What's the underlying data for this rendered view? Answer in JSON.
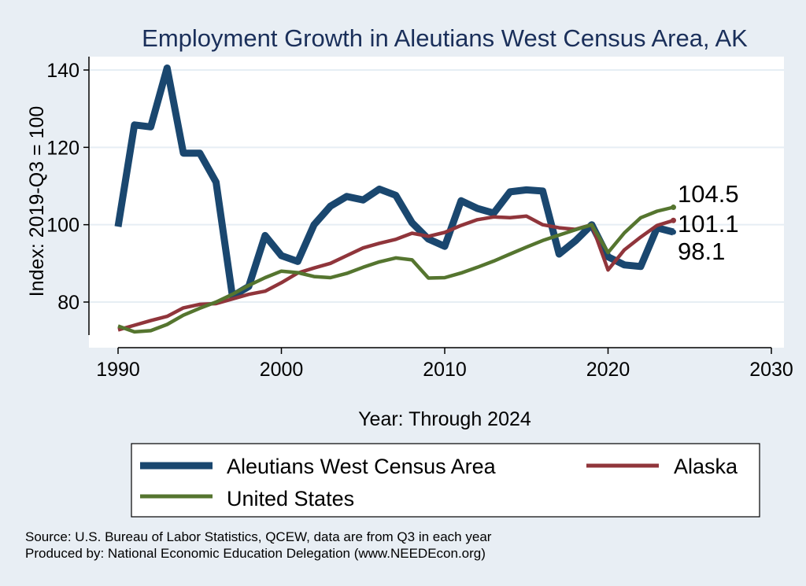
{
  "chart_data": {
    "type": "line",
    "title": "Employment Growth in Aleutians West Census Area, AK",
    "xlabel": "Year: Through 2024",
    "ylabel": "Index: 2019-Q3 = 100",
    "xlim": [
      1990,
      2030
    ],
    "ylim": [
      70,
      142
    ],
    "xticks": [
      1990,
      2000,
      2010,
      2020,
      2030
    ],
    "yticks": [
      80,
      100,
      120,
      140
    ],
    "grid": true,
    "legend_position": "bottom",
    "x": [
      1990,
      1991,
      1992,
      1993,
      1994,
      1995,
      1996,
      1997,
      1998,
      1999,
      2000,
      2001,
      2002,
      2003,
      2004,
      2005,
      2006,
      2007,
      2008,
      2009,
      2010,
      2011,
      2012,
      2013,
      2014,
      2015,
      2016,
      2017,
      2018,
      2019,
      2020,
      2021,
      2022,
      2023,
      2024
    ],
    "series": [
      {
        "name": "Aleutians West Census Area",
        "color": "#1a476f",
        "values": [
          99.5,
          125.8,
          125.3,
          140.5,
          118.5,
          118.5,
          111.0,
          81.5,
          84.0,
          97.2,
          92.0,
          90.5,
          100.0,
          104.8,
          107.3,
          106.4,
          109.2,
          107.6,
          100.5,
          96.3,
          94.4,
          106.2,
          104.2,
          103.0,
          108.5,
          109.0,
          108.7,
          92.4,
          95.8,
          100.0,
          91.7,
          89.6,
          89.2,
          99.2,
          98.1
        ],
        "end_label": "98.1"
      },
      {
        "name": "Alaska",
        "color": "#90353b",
        "values": [
          72.8,
          74.0,
          75.2,
          76.3,
          78.5,
          79.4,
          79.6,
          80.8,
          82.0,
          82.8,
          85.0,
          87.5,
          88.8,
          90.0,
          92.0,
          94.0,
          95.2,
          96.2,
          97.8,
          97.0,
          98.0,
          99.8,
          101.3,
          102.0,
          101.8,
          102.2,
          100.0,
          99.2,
          98.8,
          100.0,
          88.3,
          93.5,
          96.8,
          99.8,
          101.1
        ],
        "end_label": "101.1"
      },
      {
        "name": "United States",
        "color": "#55752f",
        "values": [
          73.8,
          72.3,
          72.6,
          74.2,
          76.6,
          78.4,
          80.0,
          82.0,
          84.3,
          86.3,
          88.0,
          87.6,
          86.6,
          86.3,
          87.4,
          89.0,
          90.4,
          91.4,
          90.9,
          86.2,
          86.3,
          87.5,
          89.0,
          90.6,
          92.4,
          94.2,
          95.9,
          97.3,
          98.7,
          100.0,
          92.8,
          97.9,
          101.8,
          103.5,
          104.5
        ],
        "end_label": "104.5"
      }
    ]
  },
  "legend": {
    "items": [
      {
        "label": "Aleutians West Census Area",
        "color": "#1a476f",
        "weight": "thick"
      },
      {
        "label": "Alaska",
        "color": "#90353b",
        "weight": "thin"
      },
      {
        "label": "United States",
        "color": "#55752f",
        "weight": "thin"
      }
    ]
  },
  "notes": {
    "source": "Source: U.S. Bureau of Labor Statistics, QCEW, data are from Q3 in each year",
    "produced": "Produced by: National Economic Education Delegation (www.NEEDEcon.org)"
  },
  "colors": {
    "background": "#e8eef4",
    "plot_background": "#ffffff",
    "title": "#1a2f5a"
  }
}
